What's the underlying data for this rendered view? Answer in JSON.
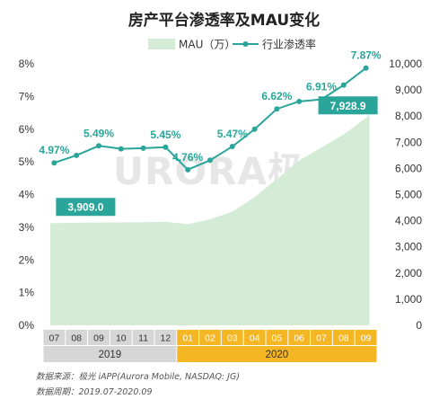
{
  "chart_data": {
    "type": "area+line",
    "title": "房产平台渗透率及MAU变化",
    "legend": {
      "position": "top",
      "items": [
        {
          "name": "MAU（万）",
          "color": "#d4ecd6",
          "kind": "area"
        },
        {
          "name": "行业渗透率",
          "color": "#2aa59a",
          "kind": "line"
        }
      ]
    },
    "categories": [
      "07",
      "08",
      "09",
      "10",
      "11",
      "12",
      "01",
      "02",
      "03",
      "04",
      "05",
      "06",
      "07",
      "08",
      "09"
    ],
    "year_groups": [
      {
        "label": "2019",
        "start": 0,
        "end": 5,
        "color": "#d6d6d6"
      },
      {
        "label": "2020",
        "start": 6,
        "end": 14,
        "color": "#f5b623"
      }
    ],
    "series": [
      {
        "name": "MAU（万）",
        "axis": "right",
        "type": "area",
        "values": [
          3909.0,
          3920,
          3930,
          3935,
          3945,
          3955,
          3870,
          4050,
          4350,
          4900,
          5600,
          6300,
          6800,
          7300,
          7928.9
        ]
      },
      {
        "name": "行业渗透率",
        "axis": "left",
        "type": "line",
        "values": [
          4.97,
          5.2,
          5.49,
          5.4,
          5.42,
          5.45,
          4.76,
          5.05,
          5.47,
          6.0,
          6.62,
          6.85,
          6.91,
          7.35,
          7.87
        ]
      }
    ],
    "annotations": [
      {
        "series": "行业渗透率",
        "index": 0,
        "text": "4.97%"
      },
      {
        "series": "行业渗透率",
        "index": 2,
        "text": "5.49%"
      },
      {
        "series": "行业渗透率",
        "index": 5,
        "text": "5.45%"
      },
      {
        "series": "行业渗透率",
        "index": 6,
        "text": "4.76%"
      },
      {
        "series": "行业渗透率",
        "index": 8,
        "text": "5.47%"
      },
      {
        "series": "行业渗透率",
        "index": 10,
        "text": "6.62%"
      },
      {
        "series": "行业渗透率",
        "index": 12,
        "text": "6.91%"
      },
      {
        "series": "行业渗透率",
        "index": 14,
        "text": "7.87%"
      },
      {
        "series": "MAU（万）",
        "index": 0,
        "text": "3,909.0",
        "boxed": true
      },
      {
        "series": "MAU（万）",
        "index": 14,
        "text": "7,928.9",
        "boxed": true
      }
    ],
    "y_left": {
      "min": 0,
      "max": 8,
      "ticks": [
        0,
        1,
        2,
        3,
        4,
        5,
        6,
        7,
        8
      ],
      "labels": [
        "0%",
        "1%",
        "2%",
        "3%",
        "4%",
        "5%",
        "6%",
        "7%",
        "8%"
      ]
    },
    "y_right": {
      "min": 0,
      "max": 10000,
      "ticks": [
        0,
        1000,
        2000,
        3000,
        4000,
        5000,
        6000,
        7000,
        8000,
        9000,
        10000
      ],
      "labels": [
        "0",
        "1,000",
        "2,000",
        "3,000",
        "4,000",
        "5,000",
        "6,000",
        "7,000",
        "8,000",
        "9,000",
        "10,000"
      ]
    },
    "grid": false,
    "colors": {
      "line": "#2aa59a",
      "area": "#d4ecd6",
      "box": "#2aa59a",
      "x_band_2019": "#d6d6d6",
      "x_band_2020": "#f5b623"
    }
  },
  "watermark": "URORA极光",
  "source_lines": [
    "数据来源：极光 iAPP(Aurora Mobile, NASDAQ: JG)",
    "数据周期：2019.07-2020.09"
  ]
}
